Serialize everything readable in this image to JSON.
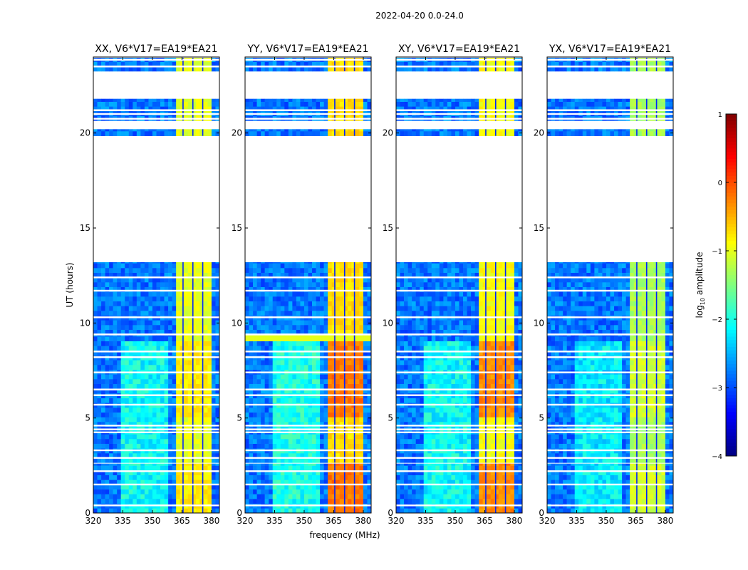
{
  "chart_data": {
    "type": "heatmap",
    "suptitle": "2022-04-20 0.0-24.0",
    "xlabel": "frequency (MHz)",
    "ylabel": "UT (hours)",
    "xlim": [
      320,
      384
    ],
    "ylim": [
      0,
      24
    ],
    "xticks": [
      "320",
      "335",
      "350",
      "365",
      "380"
    ],
    "xtick_values": [
      320,
      335,
      350,
      365,
      380
    ],
    "yticks": [
      "0",
      "5",
      "10",
      "15",
      "20"
    ],
    "ytick_values": [
      0,
      5,
      10,
      15,
      20
    ],
    "colorbar": {
      "label_prefix": "log",
      "label_sub": "10",
      "label_suffix": " amplitude",
      "range": [
        -4,
        1
      ],
      "ticks": [
        "1",
        "0",
        "−1",
        "−2",
        "−3",
        "−4"
      ],
      "tick_values": [
        1,
        0,
        -1,
        -2,
        -3,
        -4
      ],
      "colormap": "jet"
    },
    "data_time_ranges_hours": [
      [
        0,
        2.6
      ],
      [
        2.65,
        4.2
      ],
      [
        4.3,
        9.35
      ],
      [
        9.4,
        13.2
      ],
      [
        19.85,
        20.2
      ],
      [
        20.65,
        21.8
      ],
      [
        23.25,
        23.95
      ]
    ],
    "flagged_time_lines_hours": [
      0.4,
      1.5,
      2.2,
      2.9,
      3.3,
      4.4,
      4.6,
      5.7,
      6.2,
      6.5,
      7.4,
      8.2,
      8.5,
      9.4,
      10.3,
      11.7,
      12.4,
      21.0,
      21.2,
      20.75,
      23.5,
      23.85
    ],
    "rfi_band_mhz": [
      362,
      380
    ],
    "rfi_band_gaps_mhz": [
      365.5,
      370.5,
      375.5
    ],
    "background_level": -2.8,
    "panels": [
      {
        "title": "XX, V6*V17=EA19*EA21",
        "band_level": -1.0,
        "band_level_peak": -0.8,
        "diffuse_level": -2.1
      },
      {
        "title": "YY, V6*V17=EA19*EA21",
        "band_level": -0.7,
        "band_level_peak": -0.2,
        "diffuse_level": -2.0
      },
      {
        "title": "XY, V6*V17=EA19*EA21",
        "band_level": -0.9,
        "band_level_peak": -0.3,
        "diffuse_level": -2.1
      },
      {
        "title": "YX, V6*V17=EA19*EA21",
        "band_level": -1.3,
        "band_level_peak": -1.1,
        "diffuse_level": -2.2
      }
    ]
  }
}
